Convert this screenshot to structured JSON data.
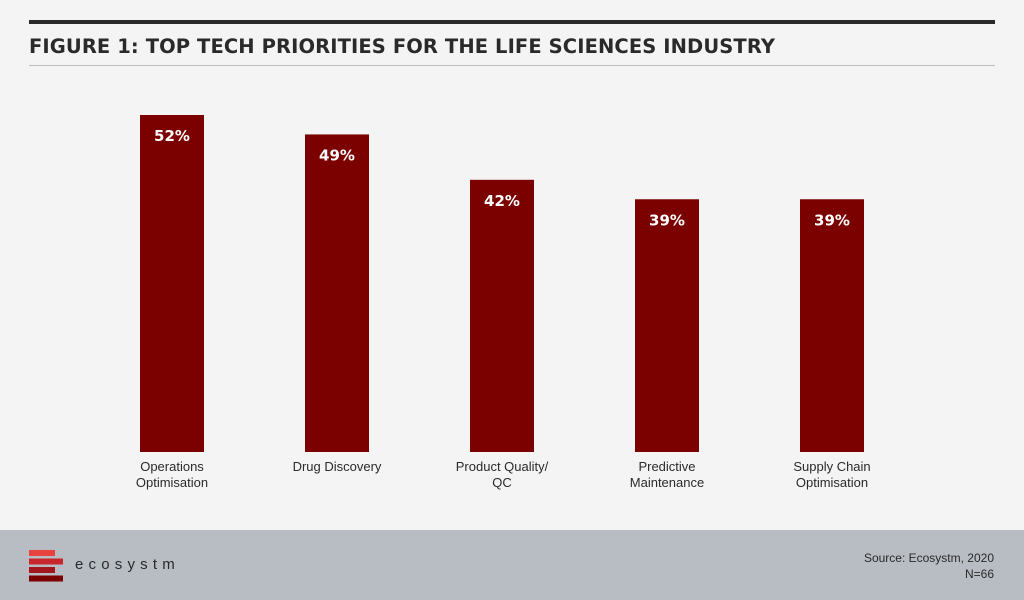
{
  "figure": {
    "title": "FIGURE 1: TOP TECH PRIORITIES FOR THE LIFE SCIENCES INDUSTRY"
  },
  "chart_data": {
    "type": "bar",
    "categories": [
      [
        "Operations",
        "Optimisation"
      ],
      [
        "Drug Discovery"
      ],
      [
        "Product Quality/",
        "QC"
      ],
      [
        "Predictive",
        "Maintenance"
      ],
      [
        "Supply Chain",
        "Optimisation"
      ]
    ],
    "values": [
      52,
      49,
      42,
      39,
      39
    ],
    "data_labels": [
      "52%",
      "49%",
      "42%",
      "39%",
      "39%"
    ],
    "unit": "%",
    "ylim": [
      0,
      52
    ],
    "grid": false,
    "legend": "none",
    "bar_color": "#7b0000",
    "label_color": "#ffffff"
  },
  "footer": {
    "logo_text": "ecosystm",
    "source": "Source: Ecosystm, 2020",
    "sample": "N=66",
    "logo_colors": [
      "#e8423f",
      "#c8262b",
      "#a3161c",
      "#7b0000"
    ]
  }
}
